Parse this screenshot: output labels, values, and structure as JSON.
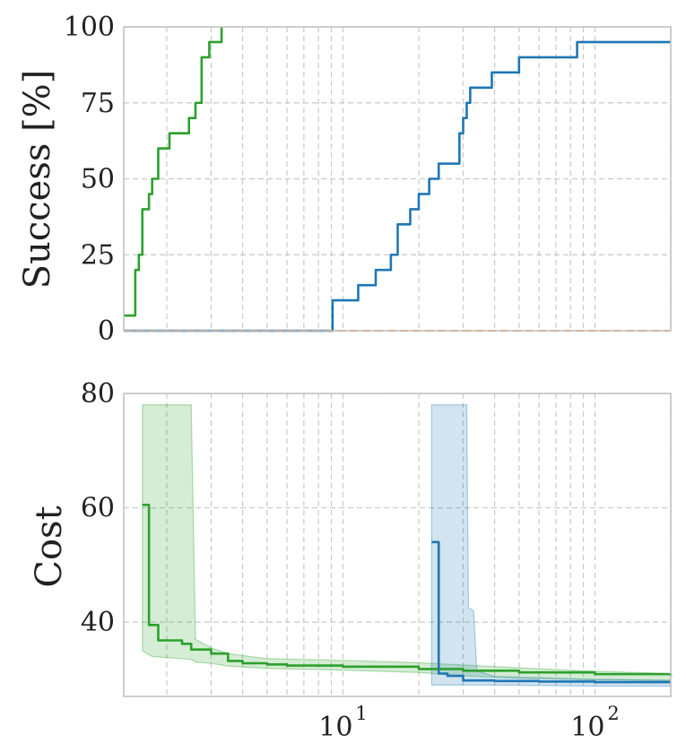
{
  "chart_data": [
    {
      "type": "line",
      "ylabel": "Success [%]",
      "xscale": "log",
      "xlim": [
        1.35,
        200
      ],
      "ylim": [
        0,
        100
      ],
      "yticks": [
        "0",
        "25",
        "50",
        "75",
        "100"
      ],
      "grid": true,
      "series": [
        {
          "color": "#2ca02c",
          "style": "solid",
          "x": [
            1.35,
            1.45,
            1.5,
            1.55,
            1.6,
            1.7,
            1.75,
            1.85,
            1.9,
            2.05,
            2.3,
            2.45,
            2.6,
            2.75,
            2.95,
            3.3
          ],
          "y": [
            5,
            5,
            20,
            25,
            40,
            45,
            50,
            60,
            60,
            65,
            65,
            70,
            75,
            90,
            95,
            100
          ]
        },
        {
          "color": "#1f77b4",
          "style": "solid",
          "x": [
            1.35,
            8.6,
            9.1,
            11.5,
            13.5,
            15.5,
            16.5,
            18.5,
            20,
            22,
            24,
            25,
            29,
            30,
            31,
            32,
            34,
            39,
            42,
            50,
            55,
            85,
            95,
            200
          ],
          "y": [
            0,
            0,
            10,
            15,
            20,
            25,
            35,
            40,
            45,
            50,
            55,
            55,
            65,
            70,
            75,
            80,
            80,
            85,
            85,
            90,
            90,
            95,
            95,
            95
          ]
        },
        {
          "color": "#ff7f0e",
          "style": "dashed",
          "x": [
            1.35,
            200
          ],
          "y": [
            0,
            0
          ]
        }
      ]
    },
    {
      "type": "line",
      "ylabel": "Cost",
      "xscale": "log",
      "xlim": [
        1.35,
        200
      ],
      "ylim": [
        27,
        80
      ],
      "yticks": [
        "40",
        "60",
        "80"
      ],
      "xticks": [
        {
          "base": "10",
          "exp": "1"
        },
        {
          "base": "10",
          "exp": "2"
        }
      ],
      "grid": true,
      "series": [
        {
          "color": "#2ca02c",
          "x": [
            1.6,
            1.65,
            1.7,
            1.8,
            1.85,
            2.0,
            2.3,
            2.5,
            3.0,
            3.5,
            4.0,
            5.0,
            6.0,
            10,
            20,
            30,
            50,
            100,
            200
          ],
          "y": [
            60.5,
            60.5,
            39.5,
            39.5,
            36.8,
            36.8,
            36.2,
            35.2,
            34.5,
            33.2,
            32.8,
            32.6,
            32.4,
            32.2,
            31.8,
            31.5,
            31.2,
            30.9,
            30.6
          ],
          "band_x": [
            1.6,
            1.75,
            2.5,
            2.6,
            3.0,
            3.5,
            5.0,
            10,
            20,
            30,
            50,
            100,
            200
          ],
          "band_upper": [
            78,
            78,
            78,
            37,
            35.5,
            34.5,
            33.6,
            33.3,
            32.9,
            32.5,
            32.0,
            31.4,
            31.0
          ],
          "band_lower": [
            35,
            34,
            33.5,
            33,
            32.8,
            32.3,
            31.9,
            31.6,
            31.2,
            30.6,
            30.2,
            29.9,
            29.8
          ]
        },
        {
          "color": "#1f77b4",
          "x": [
            22.5,
            23.5,
            24,
            26,
            30,
            40,
            60,
            100,
            200
          ],
          "y": [
            54,
            54,
            31,
            30.6,
            29.8,
            29.7,
            29.6,
            29.5,
            29.5
          ],
          "band_x": [
            22.5,
            31,
            31.5,
            33,
            34,
            40,
            100,
            200
          ],
          "band_upper": [
            78,
            78,
            42.5,
            42,
            31.5,
            30.5,
            30.0,
            29.8
          ],
          "band_lower": [
            29,
            29,
            29,
            29,
            29,
            29,
            28.8,
            28.8
          ]
        }
      ]
    }
  ]
}
